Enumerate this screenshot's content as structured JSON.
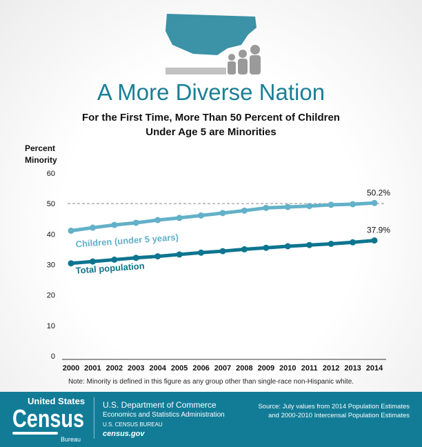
{
  "header": {
    "title": "A More Diverse Nation",
    "subtitle_line1": "For the First Time, More Than 50 Percent of Children",
    "subtitle_line2": "Under Age 5 are Minorities"
  },
  "chart_data": {
    "type": "line",
    "ylabel_line1": "Percent",
    "ylabel_line2": "Minority",
    "ylim": [
      0,
      60
    ],
    "yticks": [
      "0",
      "10",
      "20",
      "30",
      "40",
      "50",
      "60"
    ],
    "categories": [
      "2000",
      "2001",
      "2002",
      "2003",
      "2004",
      "2005",
      "2006",
      "2007",
      "2008",
      "2009",
      "2010",
      "2011",
      "2012",
      "2013",
      "2014"
    ],
    "reference_line": 50,
    "series": [
      {
        "name": "Children (under 5 years)",
        "color": "#62b1c8",
        "values": [
          41.1,
          42.1,
          43.0,
          43.7,
          44.6,
          45.3,
          46.1,
          46.9,
          47.7,
          48.6,
          48.9,
          49.2,
          49.6,
          49.8,
          50.2
        ],
        "end_label": "50.2%"
      },
      {
        "name": "Total population",
        "color": "#0d7590",
        "values": [
          30.4,
          31.0,
          31.6,
          32.2,
          32.7,
          33.3,
          33.9,
          34.4,
          35.0,
          35.5,
          36.0,
          36.4,
          36.8,
          37.3,
          37.9
        ],
        "end_label": "37.9%"
      }
    ]
  },
  "note": "Note: Minority is defined in this figure as any group other than single-race non-Hispanic white.",
  "footer": {
    "logo_top": "United States",
    "logo_main": "Census",
    "logo_bottom": "Bureau",
    "dept": "U.S. Department of Commerce",
    "admin": "Economics and Statistics Administration",
    "bureau": "U.S. CENSUS BUREAU",
    "site": "census.gov",
    "source_line1": "Source: July values from 2014 Population Estimates",
    "source_line2": "and 2000-2010 Intercensal Population Estimates"
  },
  "colors": {
    "brand": "#127c97",
    "title": "#1a7f96"
  }
}
